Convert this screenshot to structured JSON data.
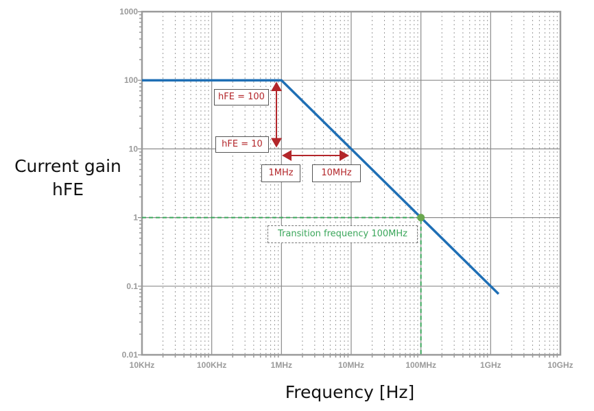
{
  "chart_data": {
    "type": "line",
    "title": "",
    "xlabel": "Frequency [Hz]",
    "ylabel": "Current gain hFE",
    "xscale": "log",
    "yscale": "log",
    "xlim": [
      10000,
      10000000000
    ],
    "ylim": [
      0.01,
      1000
    ],
    "x_ticks": [
      "10KHz",
      "100KHz",
      "1MHz",
      "10MHz",
      "100MHz",
      "1GHz",
      "10GHz"
    ],
    "y_ticks": [
      "1000",
      "100",
      "10",
      "1",
      "0.1",
      "0.01"
    ],
    "grid": true,
    "legend": null,
    "series": [
      {
        "name": "hFE",
        "color": "#1f6fb5",
        "x": [
          10000,
          1000000,
          10000000,
          100000000,
          1000000000,
          1300000000
        ],
        "y": [
          100,
          100,
          10,
          1,
          0.1,
          0.077
        ]
      }
    ],
    "annotations": [
      {
        "text": "hFE = 100",
        "color": "#b3262a"
      },
      {
        "text": "hFE = 10",
        "color": "#b3262a"
      },
      {
        "text": "1MHz",
        "color": "#b3262a"
      },
      {
        "text": "10MHz",
        "color": "#b3262a"
      },
      {
        "text": "Transition frequency 100MHz",
        "color": "#3aa65a",
        "point": {
          "x": 100000000,
          "y": 1
        }
      }
    ]
  },
  "labels": {
    "ylabel_line1": "Current gain",
    "ylabel_line2": "hFE",
    "xlabel": "Frequency [Hz]",
    "hfe100": "hFE = 100",
    "hfe10": "hFE = 10",
    "f1": "1MHz",
    "f10": "10MHz",
    "transition": "Transition frequency 100MHz"
  },
  "colors": {
    "curve": "#1f6fb5",
    "annotation_red": "#b3262a",
    "transition_green": "#3aa65a",
    "marker": "#6aa84f",
    "grid": "#9a9a9a"
  }
}
